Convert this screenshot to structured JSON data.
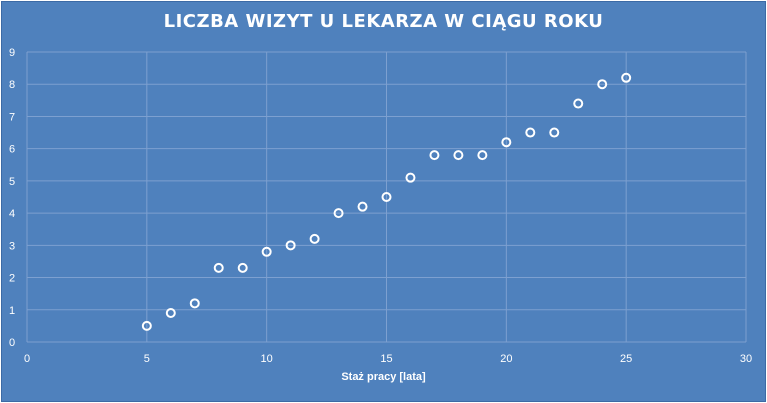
{
  "chart_data": {
    "type": "scatter",
    "title": "LICZBA WIZYT U LEKARZA W CIĄGU ROKU",
    "xlabel": "Staż pracy [lata]",
    "ylabel": "",
    "xlim": [
      0,
      30
    ],
    "ylim": [
      0,
      9
    ],
    "x_ticks": [
      0,
      5,
      10,
      15,
      20,
      25,
      30
    ],
    "y_ticks": [
      0,
      1,
      2,
      3,
      4,
      5,
      6,
      7,
      8,
      9
    ],
    "grid": true,
    "legend": "none",
    "points": [
      {
        "x": 5,
        "y": 0.5
      },
      {
        "x": 6,
        "y": 0.9
      },
      {
        "x": 7,
        "y": 1.2
      },
      {
        "x": 8,
        "y": 2.3
      },
      {
        "x": 9,
        "y": 2.3
      },
      {
        "x": 10,
        "y": 2.8
      },
      {
        "x": 11,
        "y": 3.0
      },
      {
        "x": 12,
        "y": 3.2
      },
      {
        "x": 13,
        "y": 4.0
      },
      {
        "x": 14,
        "y": 4.2
      },
      {
        "x": 15,
        "y": 4.5
      },
      {
        "x": 16,
        "y": 5.1
      },
      {
        "x": 17,
        "y": 5.8
      },
      {
        "x": 18,
        "y": 5.8
      },
      {
        "x": 19,
        "y": 5.8
      },
      {
        "x": 20,
        "y": 6.2
      },
      {
        "x": 21,
        "y": 6.5
      },
      {
        "x": 22,
        "y": 6.5
      },
      {
        "x": 23,
        "y": 7.4
      },
      {
        "x": 24,
        "y": 8.0
      },
      {
        "x": 25,
        "y": 8.2
      }
    ]
  },
  "colors": {
    "background": "#4f81bd",
    "grid": "#7da0d0",
    "marker_stroke": "#ffffff",
    "text": "#ffffff"
  }
}
